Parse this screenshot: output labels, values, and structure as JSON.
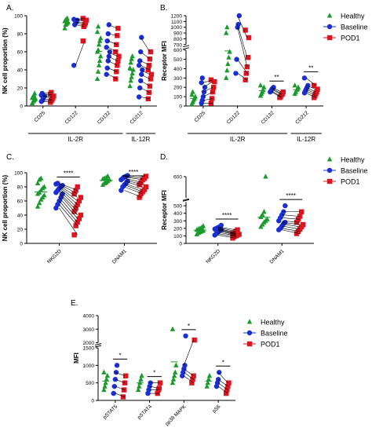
{
  "colors": {
    "healthy": "#1a9b2c",
    "baseline": "#1a2fd6",
    "pod1": "#e0141e",
    "axis": "#000000",
    "pair_line": "#000000"
  },
  "legend": {
    "healthy_label": "Healthy",
    "baseline_label": "Baseline",
    "pod1_label": "POD1",
    "markers": {
      "healthy": "triangle",
      "baseline": "circle",
      "pod1": "square"
    }
  },
  "chart_data": [
    {
      "panel": "A.",
      "type": "scatter",
      "ylabel": "NK cell proportion (%)",
      "ylim": [
        0,
        100
      ],
      "yticks": [
        "0",
        "20",
        "40",
        "60",
        "80",
        "100"
      ],
      "categories": [
        "CD25",
        "CD122",
        "CD132",
        "CD212"
      ],
      "groups": [
        {
          "label": "IL-2R",
          "categories": [
            "CD25",
            "CD122",
            "CD132"
          ]
        },
        {
          "label": "IL-12R",
          "categories": [
            "CD212"
          ]
        }
      ],
      "series": [
        {
          "name": "Healthy",
          "values": [
            [
              3,
              5,
              6,
              7,
              8,
              9,
              10,
              12,
              14
            ],
            [
              86,
              90,
              91,
              92,
              93,
              94,
              95,
              96,
              97
            ],
            [
              30,
              38,
              45,
              50,
              55,
              60,
              62,
              68,
              72,
              75,
              82,
              88
            ],
            [
              22,
              28,
              32,
              36,
              40,
              42,
              48,
              52,
              55
            ]
          ]
        },
        {
          "name": "Baseline",
          "values": [
            [
              5,
              6,
              8,
              10,
              11,
              12,
              14
            ],
            [
              45,
              90,
              92,
              93,
              95,
              96
            ],
            [
              35,
              42,
              50,
              55,
              60,
              65,
              72,
              80,
              90
            ],
            [
              10,
              20,
              28,
              35,
              40,
              45,
              50,
              60,
              76
            ]
          ]
        },
        {
          "name": "POD1",
          "values": [
            [
              4,
              6,
              7,
              9,
              11,
              13,
              15
            ],
            [
              72,
              88,
              90,
              92,
              95,
              97
            ],
            [
              30,
              38,
              45,
              50,
              55,
              60,
              68,
              78,
              86
            ],
            [
              8,
              15,
              22,
              30,
              35,
              40,
              45,
              52,
              60
            ]
          ]
        }
      ]
    },
    {
      "panel": "B.",
      "type": "scatter",
      "ylabel": "Receptor MFI",
      "ylim": [
        0,
        1200
      ],
      "axis_break": [
        600,
        700
      ],
      "yticks": [
        "0",
        "100",
        "200",
        "300",
        "400",
        "500",
        "600",
        "700",
        "800",
        "900",
        "1000",
        "1100",
        "1200"
      ],
      "categories": [
        "CD25",
        "CD122",
        "CD132",
        "CD212"
      ],
      "groups": [
        {
          "label": "IL-2R",
          "categories": [
            "CD25",
            "CD122",
            "CD132"
          ]
        },
        {
          "label": "IL-12R",
          "categories": [
            "CD212"
          ]
        }
      ],
      "series": [
        {
          "name": "Healthy",
          "values": [
            [
              20,
              40,
              60,
              80,
              100,
              120,
              150
            ],
            [
              300,
              380,
              450,
              520,
              580,
              900,
              1000
            ],
            [
              110,
              130,
              150,
              170,
              200,
              220
            ],
            [
              130,
              150,
              170,
              180,
              200,
              220
            ]
          ]
        },
        {
          "name": "Baseline",
          "values": [
            [
              30,
              60,
              100,
              150,
              200,
              250,
              300
            ],
            [
              350,
              500,
              1000,
              1050,
              1200
            ],
            [
              150,
              160,
              180,
              190,
              200
            ],
            [
              140,
              160,
              180,
              200,
              220,
              300
            ]
          ]
        },
        {
          "name": "POD1",
          "values": [
            [
              30,
              80,
              150,
              200,
              260,
              280
            ],
            [
              280,
              350,
              420,
              520,
              820,
              950
            ],
            [
              90,
              100,
              120,
              130,
              150
            ],
            [
              90,
              110,
              130,
              150,
              180,
              220
            ]
          ]
        }
      ],
      "significance": [
        {
          "category": "CD132",
          "label": "**"
        },
        {
          "category": "CD212",
          "label": "**"
        }
      ]
    },
    {
      "panel": "C.",
      "type": "scatter",
      "ylabel": "NK cell proportion (%)",
      "ylim": [
        0,
        100
      ],
      "yticks": [
        "0",
        "20",
        "40",
        "60",
        "80",
        "100"
      ],
      "categories": [
        "NKG2D",
        "DNAM1"
      ],
      "series": [
        {
          "name": "Healthy",
          "values": [
            [
              52,
              57,
              62,
              65,
              68,
              70,
              72,
              75,
              78,
              80,
              85,
              90,
              92
            ],
            [
              83,
              85,
              86,
              88,
              90,
              91,
              92,
              93,
              95
            ]
          ]
        },
        {
          "name": "Baseline",
          "values": [
            [
              50,
              55,
              60,
              65,
              70,
              72,
              75,
              78,
              80,
              82,
              84,
              85
            ],
            [
              75,
              80,
              83,
              85,
              88,
              90,
              92,
              94,
              95,
              96
            ]
          ]
        },
        {
          "name": "POD1",
          "values": [
            [
              12,
              25,
              30,
              35,
              40,
              45,
              50,
              55,
              60,
              65,
              70,
              75,
              80
            ],
            [
              65,
              70,
              73,
              76,
              80,
              83,
              86,
              90,
              92,
              95
            ]
          ]
        }
      ],
      "significance": [
        {
          "category": "NKG2D",
          "label": "****"
        },
        {
          "category": "DNAM1",
          "label": "****"
        }
      ]
    },
    {
      "panel": "D.",
      "type": "scatter",
      "ylabel": "Receptor MFI",
      "ylim": [
        0,
        600
      ],
      "axis_break": [
        550,
        575
      ],
      "yticks": [
        "0",
        "100",
        "200",
        "300",
        "400",
        "500",
        "600"
      ],
      "categories": [
        "NKG2D",
        "DNAM1"
      ],
      "series": [
        {
          "name": "Healthy",
          "values": [
            [
              120,
              140,
              150,
              160,
              170,
              180,
              190,
              200,
              210,
              230
            ],
            [
              220,
              250,
              280,
              300,
              320,
              350,
              380,
              420,
              600
            ]
          ]
        },
        {
          "name": "Baseline",
          "values": [
            [
              110,
              130,
              150,
              170,
              180,
              190,
              200,
              210,
              220,
              240
            ],
            [
              180,
              200,
              230,
              260,
              280,
              300,
              340,
              380,
              420,
              500
            ]
          ]
        },
        {
          "name": "POD1",
          "values": [
            [
              70,
              90,
              100,
              110,
              120,
              130,
              140,
              160,
              180
            ],
            [
              130,
              160,
              190,
              220,
              250,
              280,
              320,
              360,
              420
            ]
          ]
        }
      ],
      "significance": [
        {
          "category": "NKG2D",
          "label": "****"
        },
        {
          "category": "DNAM1",
          "label": "****"
        }
      ]
    },
    {
      "panel": "E.",
      "type": "scatter",
      "ylabel": "MFI",
      "ylim": [
        0,
        4000
      ],
      "axis_break": [
        1500,
        2000
      ],
      "yticks": [
        "0",
        "500",
        "1000",
        "1500",
        "2000",
        "3000",
        "4000"
      ],
      "categories": [
        "pSTAT5",
        "pSTAT4",
        "pp38 MAPK",
        "pS6"
      ],
      "series": [
        {
          "name": "Healthy",
          "values": [
            [
              300,
              400,
              500,
              600,
              700,
              800
            ],
            [
              300,
              400,
              500,
              600,
              700
            ],
            [
              500,
              600,
              700,
              800,
              1000,
              3000
            ],
            [
              400,
              500,
              600,
              700
            ]
          ]
        },
        {
          "name": "Baseline",
          "values": [
            [
              200,
              400,
              600,
              800,
              1000
            ],
            [
              200,
              300,
              400,
              500
            ],
            [
              700,
              800,
              900,
              1000,
              2500
            ],
            [
              400,
              500,
              600,
              800
            ]
          ]
        },
        {
          "name": "POD1",
          "values": [
            [
              100,
              300,
              500,
              700
            ],
            [
              200,
              300,
              350,
              500
            ],
            [
              500,
              600,
              700,
              2200
            ],
            [
              200,
              300,
              400,
              500
            ]
          ]
        }
      ],
      "significance": [
        {
          "category": "pSTAT5",
          "label": "*"
        },
        {
          "category": "pSTAT4",
          "label": "*"
        },
        {
          "category": "pp38 MAPK",
          "label": "*"
        },
        {
          "category": "pS6",
          "label": "*"
        }
      ]
    }
  ]
}
